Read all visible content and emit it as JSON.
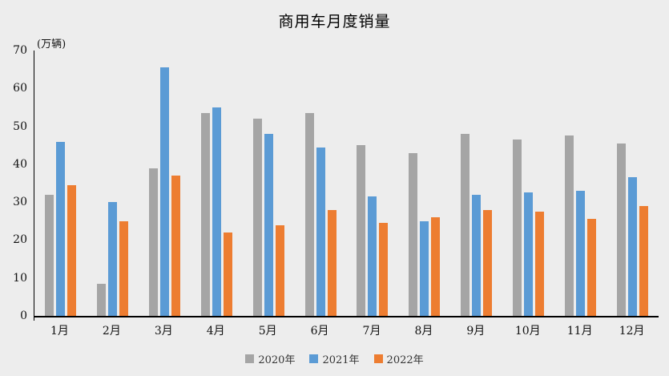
{
  "title": "商用车月度销量",
  "unit_label": "(万辆)",
  "background_color": "#ededed",
  "axis_color": "#000000",
  "chart_data": {
    "type": "bar",
    "title": "商用车月度销量",
    "unit": "(万辆)",
    "categories": [
      "1月",
      "2月",
      "3月",
      "4月",
      "5月",
      "6月",
      "7月",
      "8月",
      "9月",
      "10月",
      "11月",
      "12月"
    ],
    "series": [
      {
        "name": "2020年",
        "color": "#a5a5a5",
        "values": [
          32,
          8.5,
          39,
          53.5,
          52,
          53.5,
          45,
          43,
          48,
          46.5,
          47.5,
          45.5
        ]
      },
      {
        "name": "2021年",
        "color": "#5b9bd5",
        "values": [
          46,
          30,
          65.5,
          55,
          48,
          44.5,
          31.5,
          25,
          32,
          32.5,
          33,
          36.5
        ]
      },
      {
        "name": "2022年",
        "color": "#ed7d31",
        "values": [
          34.5,
          25,
          37,
          22,
          24,
          28,
          24.5,
          26,
          28,
          27.5,
          25.5,
          29
        ]
      }
    ],
    "ylim": [
      0,
      70
    ],
    "yticks": [
      0,
      10,
      20,
      30,
      40,
      50,
      60,
      70
    ],
    "xlabel": "",
    "ylabel": "",
    "grid": false,
    "legend_position": "bottom"
  }
}
